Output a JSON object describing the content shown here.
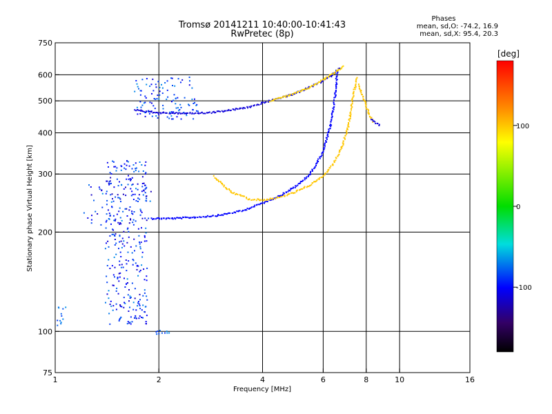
{
  "chart_data": {
    "type": "scatter",
    "title": "Tromsø 20141211 10:40:00-10:41:43",
    "subtitle": "RwPretec (8p)",
    "xlabel": "Frequency [MHz]",
    "ylabel": "Stationary phase Virtual Height [km]",
    "x_scale": "log",
    "y_scale": "log",
    "xlim": [
      1,
      16
    ],
    "ylim": [
      75,
      750
    ],
    "x_ticks": [
      1,
      2,
      4,
      6,
      8,
      10,
      16
    ],
    "x_tick_labels": [
      "1",
      "2",
      "4",
      "6",
      "8",
      "10",
      "16"
    ],
    "y_ticks": [
      75,
      100,
      200,
      300,
      400,
      500,
      600,
      750
    ],
    "y_tick_labels": [
      "75",
      "100",
      "200",
      "300",
      "400",
      "500",
      "600",
      "750"
    ],
    "grid": true,
    "stats": {
      "heading": "Phases",
      "o_line": "mean, sd,O: -74.2, 16.9",
      "x_line": "mean, sd,X:  95.4, 20.3"
    },
    "colorbar": {
      "label": "[deg]",
      "range": [
        -180,
        180
      ],
      "ticks": [
        100,
        0,
        -100
      ],
      "tick_labels": [
        "100",
        "0",
        "-100"
      ]
    },
    "traces": [
      {
        "x": [
          1.9,
          2.2,
          2.6,
          3.0,
          3.5,
          4.0,
          4.5,
          5.0,
          5.5,
          6.0,
          6.3,
          6.5,
          6.6
        ],
        "y": [
          220,
          220,
          222,
          225,
          232,
          245,
          258,
          275,
          300,
          350,
          420,
          520,
          620
        ],
        "phase": -100
      },
      {
        "x": [
          2.9,
          3.1,
          3.3,
          3.6
        ],
        "y": [
          295,
          275,
          262,
          255
        ],
        "phase": 100
      },
      {
        "x": [
          3.6,
          4.0,
          4.5,
          5.0,
          5.5,
          6.0,
          6.4,
          6.8,
          7.1,
          7.3,
          7.5
        ],
        "y": [
          252,
          250,
          255,
          265,
          278,
          295,
          320,
          360,
          420,
          500,
          590
        ],
        "phase": 100
      },
      {
        "x": [
          1.7,
          2.0,
          2.4,
          2.8,
          3.2,
          3.7,
          4.2,
          4.8,
          5.4,
          6.0,
          6.4,
          6.7
        ],
        "y": [
          470,
          460,
          458,
          460,
          468,
          480,
          500,
          520,
          545,
          575,
          600,
          630
        ],
        "phase": -110
      },
      {
        "x": [
          4.2,
          4.8,
          5.4,
          6.0,
          6.5,
          6.9
        ],
        "y": [
          500,
          520,
          545,
          580,
          610,
          640
        ],
        "phase": 95
      },
      {
        "x": [
          7.6,
          7.8,
          8.0,
          8.2,
          8.4
        ],
        "y": [
          560,
          520,
          480,
          450,
          430
        ],
        "phase": 100
      },
      {
        "x": [
          8.3,
          8.5,
          8.8
        ],
        "y": [
          440,
          430,
          420
        ],
        "phase": -110
      }
    ],
    "scatter_clusters": [
      {
        "x_range": [
          1.4,
          1.85
        ],
        "y_range": [
          105,
          330
        ],
        "count": 320,
        "phases": [
          -110,
          -80,
          -95
        ]
      },
      {
        "x_range": [
          1.7,
          2.6
        ],
        "y_range": [
          440,
          590
        ],
        "count": 110,
        "phases": [
          -80,
          -100
        ]
      },
      {
        "x_range": [
          1.0,
          1.08
        ],
        "y_range": [
          100,
          120
        ],
        "count": 12,
        "phases": [
          -80
        ]
      },
      {
        "x_range": [
          1.95,
          2.15
        ],
        "y_range": [
          98,
          101
        ],
        "count": 10,
        "phases": [
          -80
        ]
      },
      {
        "x_range": [
          1.2,
          1.9
        ],
        "y_range": [
          210,
          280
        ],
        "count": 50,
        "phases": [
          -110,
          -80
        ]
      }
    ]
  }
}
